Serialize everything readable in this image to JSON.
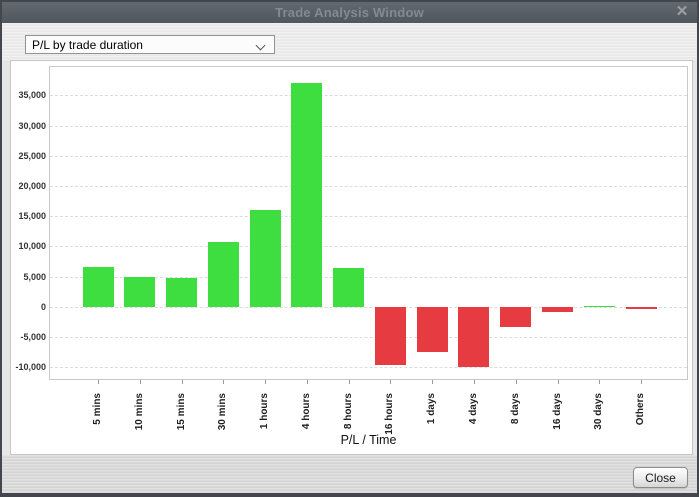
{
  "window": {
    "title": "Trade Analysis Window",
    "close_icon": "✕"
  },
  "controls": {
    "chart_type_selector": {
      "value": "P/L by trade duration"
    }
  },
  "chart_data": {
    "type": "bar",
    "title": "",
    "xlabel": "P/L / Time",
    "ylabel": "",
    "categories": [
      "5 mins",
      "10 mins",
      "15 mins",
      "30 mins",
      "1 hours",
      "4 hours",
      "8 hours",
      "16 hours",
      "1 days",
      "4 days",
      "8 days",
      "16 days",
      "30 days",
      "Others"
    ],
    "values": [
      6600,
      5000,
      4700,
      10800,
      16100,
      37100,
      6400,
      -9700,
      -7500,
      -10000,
      -3300,
      -900,
      0,
      -250
    ],
    "yticks": [
      35000,
      30000,
      25000,
      20000,
      15000,
      10000,
      5000,
      0,
      -5000,
      -10000
    ],
    "ylim": [
      -12300,
      39700
    ],
    "grid": "horizontal-dashed",
    "legend": "none",
    "positive_color": "#3edd40",
    "negative_color": "#e63b41"
  },
  "footer": {
    "close_label": "Close"
  }
}
